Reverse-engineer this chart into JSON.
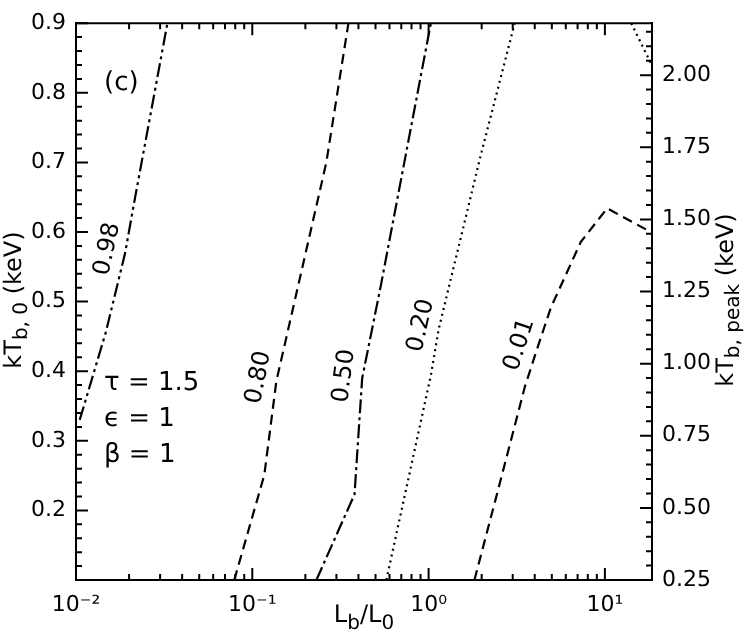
{
  "chart_data": {
    "type": "line",
    "xlabel": "L$_{b}$/L$_{0}$",
    "ylabel": "kT$_{b, 0}$ (keV)",
    "y2label": "kT$_{b, peak}$ (keV)",
    "log": "x",
    "grid": false,
    "marker": "none",
    "xlim": [
      0.01,
      18.5
    ],
    "xticks": [
      {
        "value": 0.01,
        "label": "10⁻²"
      },
      {
        "value": 0.02,
        "label": null
      },
      {
        "value": 0.03,
        "label": null
      },
      {
        "value": 0.04,
        "label": null
      },
      {
        "value": 0.05,
        "label": null
      },
      {
        "value": 0.06,
        "label": null
      },
      {
        "value": 0.07,
        "label": null
      },
      {
        "value": 0.08,
        "label": null
      },
      {
        "value": 0.09,
        "label": null
      },
      {
        "value": 0.1,
        "label": "10⁻¹"
      },
      {
        "value": 0.2,
        "label": null
      },
      {
        "value": 0.3,
        "label": null
      },
      {
        "value": 0.4,
        "label": null
      },
      {
        "value": 0.5,
        "label": null
      },
      {
        "value": 0.6,
        "label": null
      },
      {
        "value": 0.7,
        "label": null
      },
      {
        "value": 0.8,
        "label": null
      },
      {
        "value": 0.9,
        "label": null
      },
      {
        "value": 1,
        "label": "10⁰"
      },
      {
        "value": 2,
        "label": null
      },
      {
        "value": 3,
        "label": null
      },
      {
        "value": 4,
        "label": null
      },
      {
        "value": 5,
        "label": null
      },
      {
        "value": 6,
        "label": null
      },
      {
        "value": 7,
        "label": null
      },
      {
        "value": 8,
        "label": null
      },
      {
        "value": 9,
        "label": null
      },
      {
        "value": 10,
        "label": "10¹"
      }
    ],
    "ylim": [
      0.1,
      0.9
    ],
    "yticks": [
      {
        "value": 0.12,
        "label": null
      },
      {
        "value": 0.14,
        "label": null
      },
      {
        "value": 0.16,
        "label": null
      },
      {
        "value": 0.18,
        "label": null
      },
      0.2,
      {
        "value": 0.22,
        "label": null
      },
      {
        "value": 0.24,
        "label": null
      },
      {
        "value": 0.26,
        "label": null
      },
      {
        "value": 0.28,
        "label": null
      },
      0.3,
      {
        "value": 0.32,
        "label": null
      },
      {
        "value": 0.34,
        "label": null
      },
      {
        "value": 0.36,
        "label": null
      },
      {
        "value": 0.38,
        "label": null
      },
      0.4,
      {
        "value": 0.42,
        "label": null
      },
      {
        "value": 0.44,
        "label": null
      },
      {
        "value": 0.46,
        "label": null
      },
      {
        "value": 0.48,
        "label": null
      },
      0.5,
      {
        "value": 0.52,
        "label": null
      },
      {
        "value": 0.54,
        "label": null
      },
      {
        "value": 0.56,
        "label": null
      },
      {
        "value": 0.58,
        "label": null
      },
      0.6,
      {
        "value": 0.62,
        "label": null
      },
      {
        "value": 0.64,
        "label": null
      },
      {
        "value": 0.66,
        "label": null
      },
      {
        "value": 0.68,
        "label": null
      },
      0.7,
      {
        "value": 0.72,
        "label": null
      },
      {
        "value": 0.74,
        "label": null
      },
      {
        "value": 0.76,
        "label": null
      },
      {
        "value": 0.78,
        "label": null
      },
      0.8,
      {
        "value": 0.82,
        "label": null
      },
      {
        "value": 0.84,
        "label": null
      },
      {
        "value": 0.86,
        "label": null
      },
      {
        "value": 0.88,
        "label": null
      },
      0.9
    ],
    "y2lim": [
      0.25,
      2.18
    ],
    "y2ticks": [
      0.25,
      {
        "value": 0.3,
        "label": null
      },
      {
        "value": 0.35,
        "label": null
      },
      {
        "value": 0.4,
        "label": null
      },
      {
        "value": 0.45,
        "label": null
      },
      {
        "value": 0.5,
        "label": "0.50"
      },
      {
        "value": 0.55,
        "label": null
      },
      {
        "value": 0.6,
        "label": null
      },
      {
        "value": 0.65,
        "label": null
      },
      {
        "value": 0.7,
        "label": null
      },
      0.75,
      {
        "value": 0.8,
        "label": null
      },
      {
        "value": 0.85,
        "label": null
      },
      {
        "value": 0.9,
        "label": null
      },
      {
        "value": 0.95,
        "label": null
      },
      {
        "value": 1,
        "label": "1.00"
      },
      {
        "value": 1.05,
        "label": null
      },
      {
        "value": 1.1,
        "label": null
      },
      {
        "value": 1.15,
        "label": null
      },
      {
        "value": 1.2,
        "label": null
      },
      1.25,
      {
        "value": 1.3,
        "label": null
      },
      {
        "value": 1.35,
        "label": null
      },
      {
        "value": 1.4,
        "label": null
      },
      {
        "value": 1.45,
        "label": null
      },
      {
        "value": 1.5,
        "label": "1.50"
      },
      {
        "value": 1.55,
        "label": null
      },
      {
        "value": 1.6,
        "label": null
      },
      {
        "value": 1.65,
        "label": null
      },
      {
        "value": 1.7,
        "label": null
      },
      1.75,
      {
        "value": 1.8,
        "label": null
      },
      {
        "value": 1.85,
        "label": null
      },
      {
        "value": 1.9,
        "label": null
      },
      {
        "value": 1.95,
        "label": null
      },
      {
        "value": 2,
        "label": "2.00"
      },
      {
        "value": 2.05,
        "label": null
      },
      {
        "value": 2.1,
        "label": null
      },
      {
        "value": 2.15,
        "label": null
      }
    ],
    "annotations": [
      "(c)",
      "τ = 1.5",
      "ϵ = 1",
      "β = 1"
    ],
    "series": [
      {
        "name": "0.98",
        "color": "#000000",
        "line_style": "dashdotdot",
        "x": [
          0.0105,
          0.0148,
          0.019,
          0.0214,
          0.033
        ],
        "values": [
          0.33,
          0.457,
          0.57,
          0.643,
          0.9
        ]
      },
      {
        "name": "0.80",
        "color": "#000000",
        "line_style": "dashed",
        "x": [
          0.079,
          0.117,
          0.137,
          0.263,
          0.351
        ],
        "values": [
          0.1,
          0.251,
          0.386,
          0.7,
          0.9
        ]
      },
      {
        "name": "0.50",
        "color": "#000000",
        "line_style": "dashdot",
        "x": [
          0.231,
          0.38,
          0.42,
          0.533,
          1.03
        ],
        "values": [
          0.1,
          0.223,
          0.39,
          0.52,
          0.9
        ]
      },
      {
        "name": "0.20",
        "color": "#000000",
        "line_style": "dotted",
        "x": [
          0.576,
          1.03,
          1.14,
          1.97,
          3.08
        ],
        "values": [
          0.1,
          0.394,
          0.46,
          0.709,
          0.9
        ]
      },
      {
        "name": "0.01",
        "color": "#000000",
        "line_style": "dashed",
        "x": [
          1.82,
          2.1,
          2.54,
          3.51,
          4.1,
          4.93,
          7.31,
          10.3,
          18.2
        ],
        "values": [
          0.1,
          0.16,
          0.24,
          0.377,
          0.43,
          0.491,
          0.586,
          0.634,
          0.6
        ]
      },
      {
        "color": "#000000",
        "line_style": "dotted",
        "x": [
          14.1,
          18.2
        ],
        "values": [
          0.9,
          0.843
        ]
      }
    ]
  }
}
